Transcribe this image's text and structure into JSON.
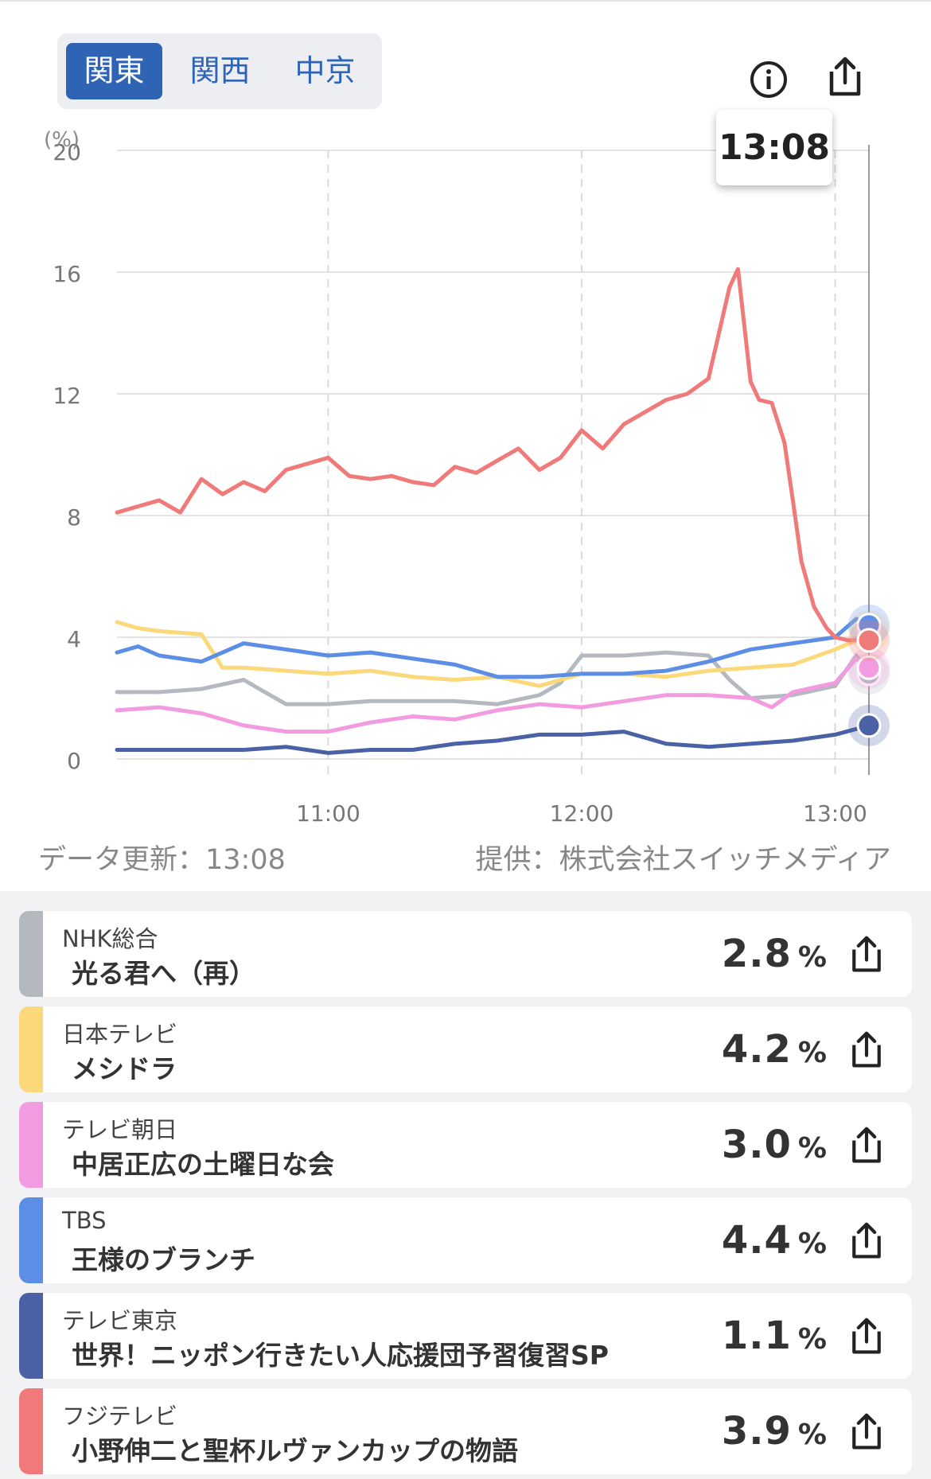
{
  "regions": {
    "tabs": [
      "関東",
      "関西",
      "中京"
    ],
    "active": "関東"
  },
  "icons": {
    "info": "info-icon",
    "share": "share-icon"
  },
  "tooltip": {
    "time": "13:08"
  },
  "footer": {
    "updated": "データ更新：13:08",
    "provider": "提供：株式会社スイッチメディア"
  },
  "chart_data": {
    "type": "line",
    "ylabel": "(%)",
    "ylim": [
      0,
      20
    ],
    "yticks": [
      "0",
      "4",
      "8",
      "12",
      "16",
      "20"
    ],
    "xticks": [
      "11:00",
      "12:00",
      "13:00"
    ],
    "xlim": [
      "10:10",
      "13:08"
    ],
    "grid": true,
    "series": [
      {
        "name": "NHK総合",
        "color": "#b4b8bf",
        "x": [
          "10:10",
          "10:20",
          "10:30",
          "10:40",
          "10:45",
          "10:50",
          "11:00",
          "11:10",
          "11:20",
          "11:30",
          "11:40",
          "11:50",
          "11:55",
          "12:00",
          "12:10",
          "12:20",
          "12:30",
          "12:35",
          "12:40",
          "12:50",
          "13:00",
          "13:05",
          "13:08"
        ],
        "values": [
          2.2,
          2.2,
          2.3,
          2.6,
          2.2,
          1.8,
          1.8,
          1.9,
          1.9,
          1.9,
          1.8,
          2.1,
          2.5,
          3.4,
          3.4,
          3.5,
          3.4,
          2.6,
          2.0,
          2.1,
          2.4,
          3.4,
          2.8
        ]
      },
      {
        "name": "日本テレビ",
        "color": "#fbd97a",
        "x": [
          "10:10",
          "10:15",
          "10:20",
          "10:30",
          "10:35",
          "10:40",
          "10:50",
          "11:00",
          "11:10",
          "11:20",
          "11:30",
          "11:40",
          "11:50",
          "12:00",
          "12:10",
          "12:20",
          "12:30",
          "12:40",
          "12:50",
          "13:00",
          "13:05",
          "13:08"
        ],
        "values": [
          4.5,
          4.3,
          4.2,
          4.1,
          3.0,
          3.0,
          2.9,
          2.8,
          2.9,
          2.7,
          2.6,
          2.7,
          2.4,
          2.8,
          2.8,
          2.7,
          2.9,
          3.0,
          3.1,
          3.6,
          3.9,
          4.2
        ]
      },
      {
        "name": "テレビ朝日",
        "color": "#f39be0",
        "x": [
          "10:10",
          "10:20",
          "10:30",
          "10:40",
          "10:50",
          "11:00",
          "11:10",
          "11:20",
          "11:30",
          "11:40",
          "11:50",
          "12:00",
          "12:10",
          "12:20",
          "12:30",
          "12:40",
          "12:45",
          "12:50",
          "13:00",
          "13:05",
          "13:08"
        ],
        "values": [
          1.6,
          1.7,
          1.5,
          1.1,
          0.9,
          0.9,
          1.2,
          1.4,
          1.3,
          1.6,
          1.8,
          1.7,
          1.9,
          2.1,
          2.1,
          2.0,
          1.7,
          2.2,
          2.5,
          3.3,
          3.0
        ]
      },
      {
        "name": "TBS",
        "color": "#5d8ee6",
        "x": [
          "10:10",
          "10:15",
          "10:20",
          "10:30",
          "10:40",
          "10:50",
          "11:00",
          "11:10",
          "11:20",
          "11:30",
          "11:40",
          "11:50",
          "12:00",
          "12:10",
          "12:20",
          "12:30",
          "12:40",
          "12:50",
          "13:00",
          "13:05",
          "13:08"
        ],
        "values": [
          3.5,
          3.7,
          3.4,
          3.2,
          3.8,
          3.6,
          3.4,
          3.5,
          3.3,
          3.1,
          2.7,
          2.7,
          2.8,
          2.8,
          2.9,
          3.2,
          3.6,
          3.8,
          4.0,
          4.6,
          4.4
        ]
      },
      {
        "name": "テレビ東京",
        "color": "#4b61a6",
        "x": [
          "10:10",
          "10:30",
          "10:40",
          "10:50",
          "11:00",
          "11:10",
          "11:20",
          "11:30",
          "11:40",
          "11:50",
          "12:00",
          "12:10",
          "12:20",
          "12:30",
          "12:40",
          "12:50",
          "13:00",
          "13:08"
        ],
        "values": [
          0.3,
          0.3,
          0.3,
          0.4,
          0.2,
          0.3,
          0.3,
          0.5,
          0.6,
          0.8,
          0.8,
          0.9,
          0.5,
          0.4,
          0.5,
          0.6,
          0.8,
          1.1
        ]
      },
      {
        "name": "フジテレビ",
        "color": "#f07a7a",
        "x": [
          "10:10",
          "10:15",
          "10:20",
          "10:25",
          "10:30",
          "10:35",
          "10:40",
          "10:45",
          "10:50",
          "10:55",
          "11:00",
          "11:05",
          "11:10",
          "11:15",
          "11:20",
          "11:25",
          "11:30",
          "11:35",
          "11:40",
          "11:45",
          "11:50",
          "11:55",
          "12:00",
          "12:05",
          "12:10",
          "12:15",
          "12:20",
          "12:25",
          "12:30",
          "12:35",
          "12:37",
          "12:40",
          "12:42",
          "12:45",
          "12:48",
          "12:50",
          "12:52",
          "12:55",
          "12:58",
          "13:00",
          "13:03",
          "13:05",
          "13:08"
        ],
        "values": [
          8.1,
          8.3,
          8.5,
          8.1,
          9.2,
          8.7,
          9.1,
          8.8,
          9.5,
          9.7,
          9.9,
          9.3,
          9.2,
          9.3,
          9.1,
          9.0,
          9.6,
          9.4,
          9.8,
          10.2,
          9.5,
          9.9,
          10.8,
          10.2,
          11.0,
          11.4,
          11.8,
          12.0,
          12.5,
          15.5,
          16.1,
          12.4,
          11.8,
          11.7,
          10.4,
          8.5,
          6.5,
          5.0,
          4.3,
          4.0,
          3.9,
          3.9,
          3.9
        ]
      }
    ]
  },
  "channels": [
    {
      "name": "NHK総合",
      "program": "光る君へ（再）",
      "rating": "2.8",
      "unit": "%",
      "color": "#b4b8bf"
    },
    {
      "name": "日本テレビ",
      "program": "メシドラ",
      "rating": "4.2",
      "unit": "%",
      "color": "#fbd97a"
    },
    {
      "name": "テレビ朝日",
      "program": "中居正広の土曜日な会",
      "rating": "3.0",
      "unit": "%",
      "color": "#f39be0"
    },
    {
      "name": "TBS",
      "program": "王様のブランチ",
      "rating": "4.4",
      "unit": "%",
      "color": "#5d8ee6"
    },
    {
      "name": "テレビ東京",
      "program": "世界！ニッポン行きたい人応援団予習復習SP",
      "rating": "1.1",
      "unit": "%",
      "color": "#4b61a6"
    },
    {
      "name": "フジテレビ",
      "program": "小野伸二と聖杯ルヴァンカップの物語",
      "rating": "3.9",
      "unit": "%",
      "color": "#f07a7a"
    }
  ]
}
